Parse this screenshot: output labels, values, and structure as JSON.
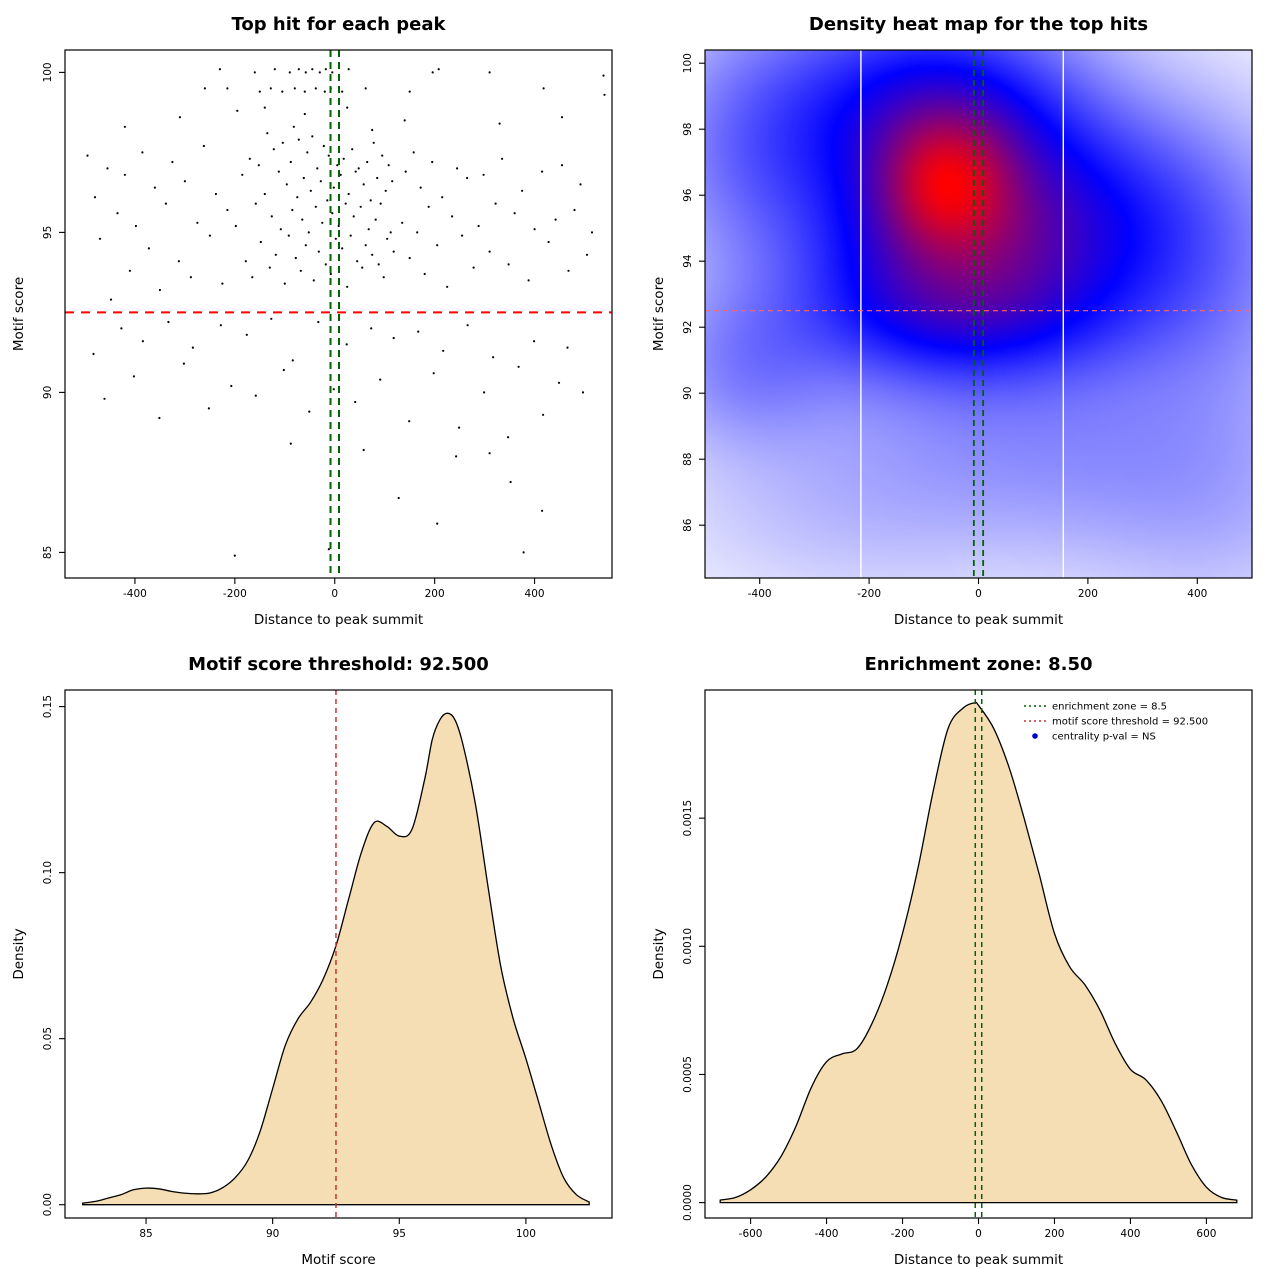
{
  "page": {
    "background": "#FFFFFF"
  },
  "colors": {
    "threshold_red": "#FF0000",
    "threshold_red_soft": "#CC3333",
    "zone_green": "#006400",
    "density_fill": "#F5DEB3",
    "points_black": "#000000",
    "pval_blue": "#0000CD"
  },
  "chart_data": [
    {
      "id": "top-hits-scatter",
      "type": "scatter",
      "title": "Top hit for each peak",
      "xlabel": "Distance to peak summit",
      "ylabel": "Motif score",
      "xlim": [
        -540,
        555
      ],
      "ylim": [
        84.2,
        100.7
      ],
      "xticks": [
        -400,
        -200,
        0,
        200,
        400
      ],
      "yticks": [
        85,
        90,
        95,
        100
      ],
      "point_color": "#000000",
      "hline": {
        "y": 92.5,
        "color": "#FF0000",
        "dash": "9,7",
        "width": 2
      },
      "vlines": {
        "x": [
          -8.5,
          8.5
        ],
        "color": "#006400",
        "dash": "7,5",
        "width": 2
      },
      "points": [
        [
          -230,
          100.1
        ],
        [
          -160,
          100
        ],
        [
          -120,
          100.1
        ],
        [
          -90,
          100
        ],
        [
          -72,
          100.1
        ],
        [
          -58,
          100
        ],
        [
          -45,
          100.1
        ],
        [
          -30,
          100
        ],
        [
          -18,
          100.1
        ],
        [
          -5,
          100
        ],
        [
          28,
          100.1
        ],
        [
          196,
          100
        ],
        [
          208,
          100.1
        ],
        [
          310,
          100
        ],
        [
          538,
          99.9
        ],
        [
          -260,
          99.5
        ],
        [
          -215,
          99.5
        ],
        [
          -150,
          99.4
        ],
        [
          -128,
          99.5
        ],
        [
          -105,
          99.4
        ],
        [
          -80,
          99.5
        ],
        [
          -60,
          99.4
        ],
        [
          -38,
          99.5
        ],
        [
          -20,
          99.4
        ],
        [
          -8,
          99.5
        ],
        [
          15,
          99.4
        ],
        [
          62,
          99.5
        ],
        [
          150,
          99.4
        ],
        [
          418,
          99.5
        ],
        [
          540,
          99.3
        ],
        [
          -420,
          98.3
        ],
        [
          -310,
          98.6
        ],
        [
          -195,
          98.8
        ],
        [
          -140,
          98.9
        ],
        [
          -60,
          98.7
        ],
        [
          25,
          98.9
        ],
        [
          75,
          98.2
        ],
        [
          140,
          98.5
        ],
        [
          330,
          98.4
        ],
        [
          455,
          98.6
        ],
        [
          -198,
          95.2
        ],
        [
          -185,
          96.8
        ],
        [
          -178,
          94.1
        ],
        [
          -170,
          97.3
        ],
        [
          -165,
          93.6
        ],
        [
          -158,
          95.9
        ],
        [
          -152,
          97.1
        ],
        [
          -148,
          94.7
        ],
        [
          -140,
          96.2
        ],
        [
          -135,
          98.1
        ],
        [
          -130,
          93.9
        ],
        [
          -126,
          95.5
        ],
        [
          -122,
          97.6
        ],
        [
          -118,
          94.3
        ],
        [
          -112,
          96.9
        ],
        [
          -108,
          95.1
        ],
        [
          -104,
          97.8
        ],
        [
          -100,
          93.4
        ],
        [
          -96,
          96.5
        ],
        [
          -92,
          94.9
        ],
        [
          -88,
          97.2
        ],
        [
          -85,
          95.7
        ],
        [
          -82,
          98.3
        ],
        [
          -78,
          94.2
        ],
        [
          -75,
          96.1
        ],
        [
          -72,
          97.9
        ],
        [
          -68,
          93.8
        ],
        [
          -65,
          95.4
        ],
        [
          -62,
          96.7
        ],
        [
          -58,
          94.6
        ],
        [
          -55,
          97.5
        ],
        [
          -52,
          95.0
        ],
        [
          -48,
          96.3
        ],
        [
          -45,
          98.0
        ],
        [
          -42,
          93.5
        ],
        [
          -38,
          95.8
        ],
        [
          -35,
          97.0
        ],
        [
          -32,
          94.4
        ],
        [
          -28,
          96.6
        ],
        [
          -25,
          95.3
        ],
        [
          -22,
          97.7
        ],
        [
          -18,
          94.0
        ],
        [
          -15,
          96.0
        ],
        [
          -12,
          97.4
        ],
        [
          -8,
          93.7
        ],
        [
          -5,
          95.6
        ],
        [
          -2,
          96.4
        ],
        [
          2,
          94.8
        ],
        [
          5,
          97.1
        ],
        [
          8,
          95.2
        ],
        [
          12,
          96.8
        ],
        [
          15,
          94.5
        ],
        [
          18,
          97.3
        ],
        [
          22,
          95.9
        ],
        [
          25,
          93.3
        ],
        [
          28,
          96.2
        ],
        [
          32,
          94.9
        ],
        [
          35,
          97.6
        ],
        [
          38,
          95.5
        ],
        [
          42,
          96.9
        ],
        [
          45,
          94.1
        ],
        [
          48,
          97.0
        ],
        [
          52,
          95.8
        ],
        [
          55,
          93.9
        ],
        [
          58,
          96.5
        ],
        [
          62,
          94.6
        ],
        [
          65,
          97.2
        ],
        [
          68,
          95.1
        ],
        [
          72,
          96.0
        ],
        [
          75,
          94.3
        ],
        [
          78,
          97.8
        ],
        [
          82,
          95.4
        ],
        [
          85,
          96.7
        ],
        [
          88,
          94.0
        ],
        [
          92,
          95.9
        ],
        [
          95,
          97.4
        ],
        [
          98,
          93.6
        ],
        [
          102,
          96.3
        ],
        [
          105,
          94.8
        ],
        [
          108,
          97.1
        ],
        [
          112,
          95.0
        ],
        [
          115,
          96.6
        ],
        [
          118,
          94.4
        ],
        [
          -495,
          97.4
        ],
        [
          -480,
          96.1
        ],
        [
          -470,
          94.8
        ],
        [
          -455,
          97.0
        ],
        [
          -448,
          92.9
        ],
        [
          -435,
          95.6
        ],
        [
          -420,
          96.8
        ],
        [
          -410,
          93.8
        ],
        [
          -398,
          95.2
        ],
        [
          -385,
          97.5
        ],
        [
          -372,
          94.5
        ],
        [
          -360,
          96.4
        ],
        [
          -350,
          93.2
        ],
        [
          -338,
          95.9
        ],
        [
          -325,
          97.2
        ],
        [
          -312,
          94.1
        ],
        [
          -300,
          96.6
        ],
        [
          -288,
          93.6
        ],
        [
          -275,
          95.3
        ],
        [
          -262,
          97.7
        ],
        [
          -250,
          94.9
        ],
        [
          -238,
          96.2
        ],
        [
          -225,
          93.4
        ],
        [
          -215,
          95.7
        ],
        [
          135,
          95.3
        ],
        [
          142,
          96.9
        ],
        [
          150,
          94.2
        ],
        [
          158,
          97.5
        ],
        [
          165,
          95.0
        ],
        [
          172,
          96.4
        ],
        [
          180,
          93.7
        ],
        [
          188,
          95.8
        ],
        [
          195,
          97.2
        ],
        [
          205,
          94.6
        ],
        [
          215,
          96.1
        ],
        [
          225,
          93.3
        ],
        [
          235,
          95.5
        ],
        [
          245,
          97.0
        ],
        [
          255,
          94.9
        ],
        [
          265,
          96.7
        ],
        [
          278,
          93.9
        ],
        [
          288,
          95.2
        ],
        [
          298,
          96.8
        ],
        [
          310,
          94.4
        ],
        [
          322,
          95.9
        ],
        [
          335,
          97.3
        ],
        [
          348,
          94.0
        ],
        [
          360,
          95.6
        ],
        [
          375,
          96.3
        ],
        [
          388,
          93.5
        ],
        [
          400,
          95.1
        ],
        [
          415,
          96.9
        ],
        [
          428,
          94.7
        ],
        [
          442,
          95.4
        ],
        [
          455,
          97.1
        ],
        [
          468,
          93.8
        ],
        [
          480,
          95.7
        ],
        [
          492,
          96.5
        ],
        [
          505,
          94.3
        ],
        [
          515,
          95.0
        ],
        [
          -483,
          91.2
        ],
        [
          -461,
          89.8
        ],
        [
          -427,
          92.0
        ],
        [
          -402,
          90.5
        ],
        [
          -384,
          91.6
        ],
        [
          -351,
          89.2
        ],
        [
          -333,
          92.2
        ],
        [
          -302,
          90.9
        ],
        [
          -284,
          91.4
        ],
        [
          -252,
          89.5
        ],
        [
          -228,
          92.1
        ],
        [
          -207,
          90.2
        ],
        [
          -176,
          91.8
        ],
        [
          -158,
          89.9
        ],
        [
          -127,
          92.3
        ],
        [
          -102,
          90.7
        ],
        [
          -84,
          91.0
        ],
        [
          -51,
          89.4
        ],
        [
          -33,
          92.2
        ],
        [
          -2,
          90.1
        ],
        [
          24,
          91.5
        ],
        [
          41,
          89.7
        ],
        [
          73,
          92.0
        ],
        [
          91,
          90.4
        ],
        [
          118,
          91.7
        ],
        [
          149,
          89.1
        ],
        [
          167,
          91.9
        ],
        [
          198,
          90.6
        ],
        [
          217,
          91.3
        ],
        [
          249,
          88.9
        ],
        [
          266,
          92.1
        ],
        [
          299,
          90.0
        ],
        [
          317,
          91.1
        ],
        [
          347,
          88.6
        ],
        [
          368,
          90.8
        ],
        [
          399,
          91.6
        ],
        [
          417,
          89.3
        ],
        [
          449,
          90.3
        ],
        [
          466,
          91.4
        ],
        [
          497,
          90.0
        ],
        [
          -200,
          84.9
        ],
        [
          -12,
          85.1
        ],
        [
          378,
          85.0
        ],
        [
          415,
          86.3
        ],
        [
          352,
          87.2
        ],
        [
          243,
          88.0
        ],
        [
          128,
          86.7
        ],
        [
          58,
          88.2
        ],
        [
          -88,
          88.4
        ],
        [
          310,
          88.1
        ],
        [
          205,
          85.9
        ]
      ]
    },
    {
      "id": "density-heatmap",
      "type": "heatmap",
      "title": "Density heat map for the top hits",
      "xlabel": "Distance to peak summit",
      "ylabel": "Motif score",
      "xlim": [
        -500,
        500
      ],
      "ylim": [
        84.4,
        100.4
      ],
      "xticks": [
        -400,
        -200,
        0,
        200,
        400
      ],
      "yticks": [
        86,
        88,
        90,
        92,
        94,
        96,
        98,
        100
      ],
      "gamma": 0.6,
      "ramp": [
        "#FFFFFF",
        "#0000FF",
        "#FF0000"
      ],
      "hotspot": {
        "x": -60,
        "y": 96.4
      },
      "blobs": [
        [
          -60,
          96.4,
          75,
          1.3,
          1.0
        ],
        [
          -30,
          95.2,
          150,
          2.1,
          0.8
        ],
        [
          -80,
          98.2,
          160,
          1.5,
          0.55
        ],
        [
          -100,
          100.2,
          180,
          1.6,
          0.3
        ],
        [
          0,
          94.3,
          240,
          2.6,
          0.5
        ],
        [
          -40,
          92.4,
          190,
          1.3,
          0.35
        ],
        [
          -390,
          97.6,
          130,
          2.3,
          0.28
        ],
        [
          250,
          95.3,
          160,
          2.2,
          0.33
        ],
        [
          -420,
          90.8,
          110,
          1.6,
          0.2
        ],
        [
          60,
          88.7,
          260,
          2.2,
          0.13
        ],
        [
          430,
          92.8,
          130,
          3.2,
          0.13
        ],
        [
          -250,
          86.5,
          200,
          1.8,
          0.06
        ],
        [
          300,
          87.5,
          200,
          2.0,
          0.07
        ],
        [
          450,
          86.0,
          150,
          2.0,
          0.05
        ]
      ],
      "white_lines_x": [
        -215,
        155
      ],
      "hline": {
        "y": 92.5,
        "color": "#FF6666",
        "dash": "5,4",
        "width": 1.2
      },
      "vlines": {
        "x": [
          -8.5,
          8.5
        ],
        "color": "#006400",
        "dash": "6,4",
        "width": 1.8
      }
    },
    {
      "id": "motif-score-density",
      "type": "area",
      "title": "Motif score threshold: 92.500",
      "xlabel": "Motif score",
      "ylabel": "Density",
      "fill": "#F5DEB3",
      "xlim": [
        81.8,
        103.4
      ],
      "ylim": [
        -0.004,
        0.155
      ],
      "xticks": [
        85,
        90,
        95,
        100
      ],
      "yticks": [
        0,
        0.05,
        0.1,
        0.15
      ],
      "ytick_labels": [
        "0.00",
        "0.05",
        "0.10",
        "0.15"
      ],
      "vlines": {
        "x": [
          92.5
        ],
        "color": "#CC3333",
        "dash": "5,4",
        "width": 1.5
      },
      "x": [
        82.5,
        83,
        83.5,
        84,
        84.5,
        85,
        85.5,
        86,
        86.5,
        87,
        87.5,
        88,
        88.5,
        89,
        89.5,
        90,
        90.5,
        91,
        91.5,
        92,
        92.5,
        93,
        93.5,
        94,
        94.5,
        95,
        95.5,
        96,
        96.3,
        96.6,
        96.9,
        97.2,
        97.5,
        98,
        98.5,
        99,
        99.5,
        100,
        100.5,
        101,
        101.5,
        102,
        102.5
      ],
      "y": [
        0.0005,
        0.001,
        0.002,
        0.003,
        0.0045,
        0.005,
        0.0048,
        0.004,
        0.0035,
        0.0033,
        0.0035,
        0.005,
        0.008,
        0.013,
        0.022,
        0.035,
        0.048,
        0.056,
        0.061,
        0.068,
        0.078,
        0.092,
        0.106,
        0.115,
        0.114,
        0.111,
        0.113,
        0.128,
        0.14,
        0.146,
        0.148,
        0.146,
        0.139,
        0.121,
        0.096,
        0.072,
        0.056,
        0.044,
        0.031,
        0.018,
        0.008,
        0.003,
        0.0008
      ]
    },
    {
      "id": "enrichment-zone-density",
      "type": "area",
      "title": "Enrichment zone: 8.50",
      "xlabel": "Distance to peak summit",
      "ylabel": "Density",
      "fill": "#F5DEB3",
      "xlim": [
        -720,
        720
      ],
      "ylim": [
        -6e-05,
        0.002
      ],
      "xticks": [
        -600,
        -400,
        -200,
        0,
        200,
        400,
        600
      ],
      "yticks": [
        0,
        0.0005,
        0.001,
        0.0015
      ],
      "ytick_labels": [
        "0.0000",
        "0.0005",
        "0.0010",
        "0.0015"
      ],
      "vlines": {
        "x": [
          -8.5,
          8.5
        ],
        "color": "#006400",
        "dash": "5,4",
        "width": 1.5
      },
      "x": [
        -680,
        -640,
        -600,
        -560,
        -520,
        -480,
        -440,
        -400,
        -360,
        -320,
        -280,
        -240,
        -200,
        -160,
        -120,
        -80,
        -40,
        -10,
        0,
        40,
        80,
        120,
        160,
        200,
        240,
        280,
        320,
        360,
        400,
        440,
        480,
        520,
        560,
        600,
        640,
        680
      ],
      "y": [
        1e-05,
        2e-05,
        5e-05,
        0.0001,
        0.00018,
        0.0003,
        0.00045,
        0.00055,
        0.00058,
        0.0006,
        0.0007,
        0.00085,
        0.00105,
        0.0013,
        0.0016,
        0.00185,
        0.00193,
        0.00195,
        0.00194,
        0.00185,
        0.0017,
        0.0015,
        0.00128,
        0.00105,
        0.00092,
        0.00085,
        0.00075,
        0.00062,
        0.00052,
        0.00048,
        0.0004,
        0.00028,
        0.00015,
        6e-05,
        2e-05,
        1e-05
      ],
      "legend": [
        {
          "marker": "line",
          "color": "#006400",
          "label": "enrichment zone = 8.5"
        },
        {
          "marker": "line",
          "color": "#CC3333",
          "label": "motif score threshold = 92.500"
        },
        {
          "marker": "point",
          "color": "#0000CD",
          "label": "centrality p-val = NS"
        }
      ]
    }
  ]
}
